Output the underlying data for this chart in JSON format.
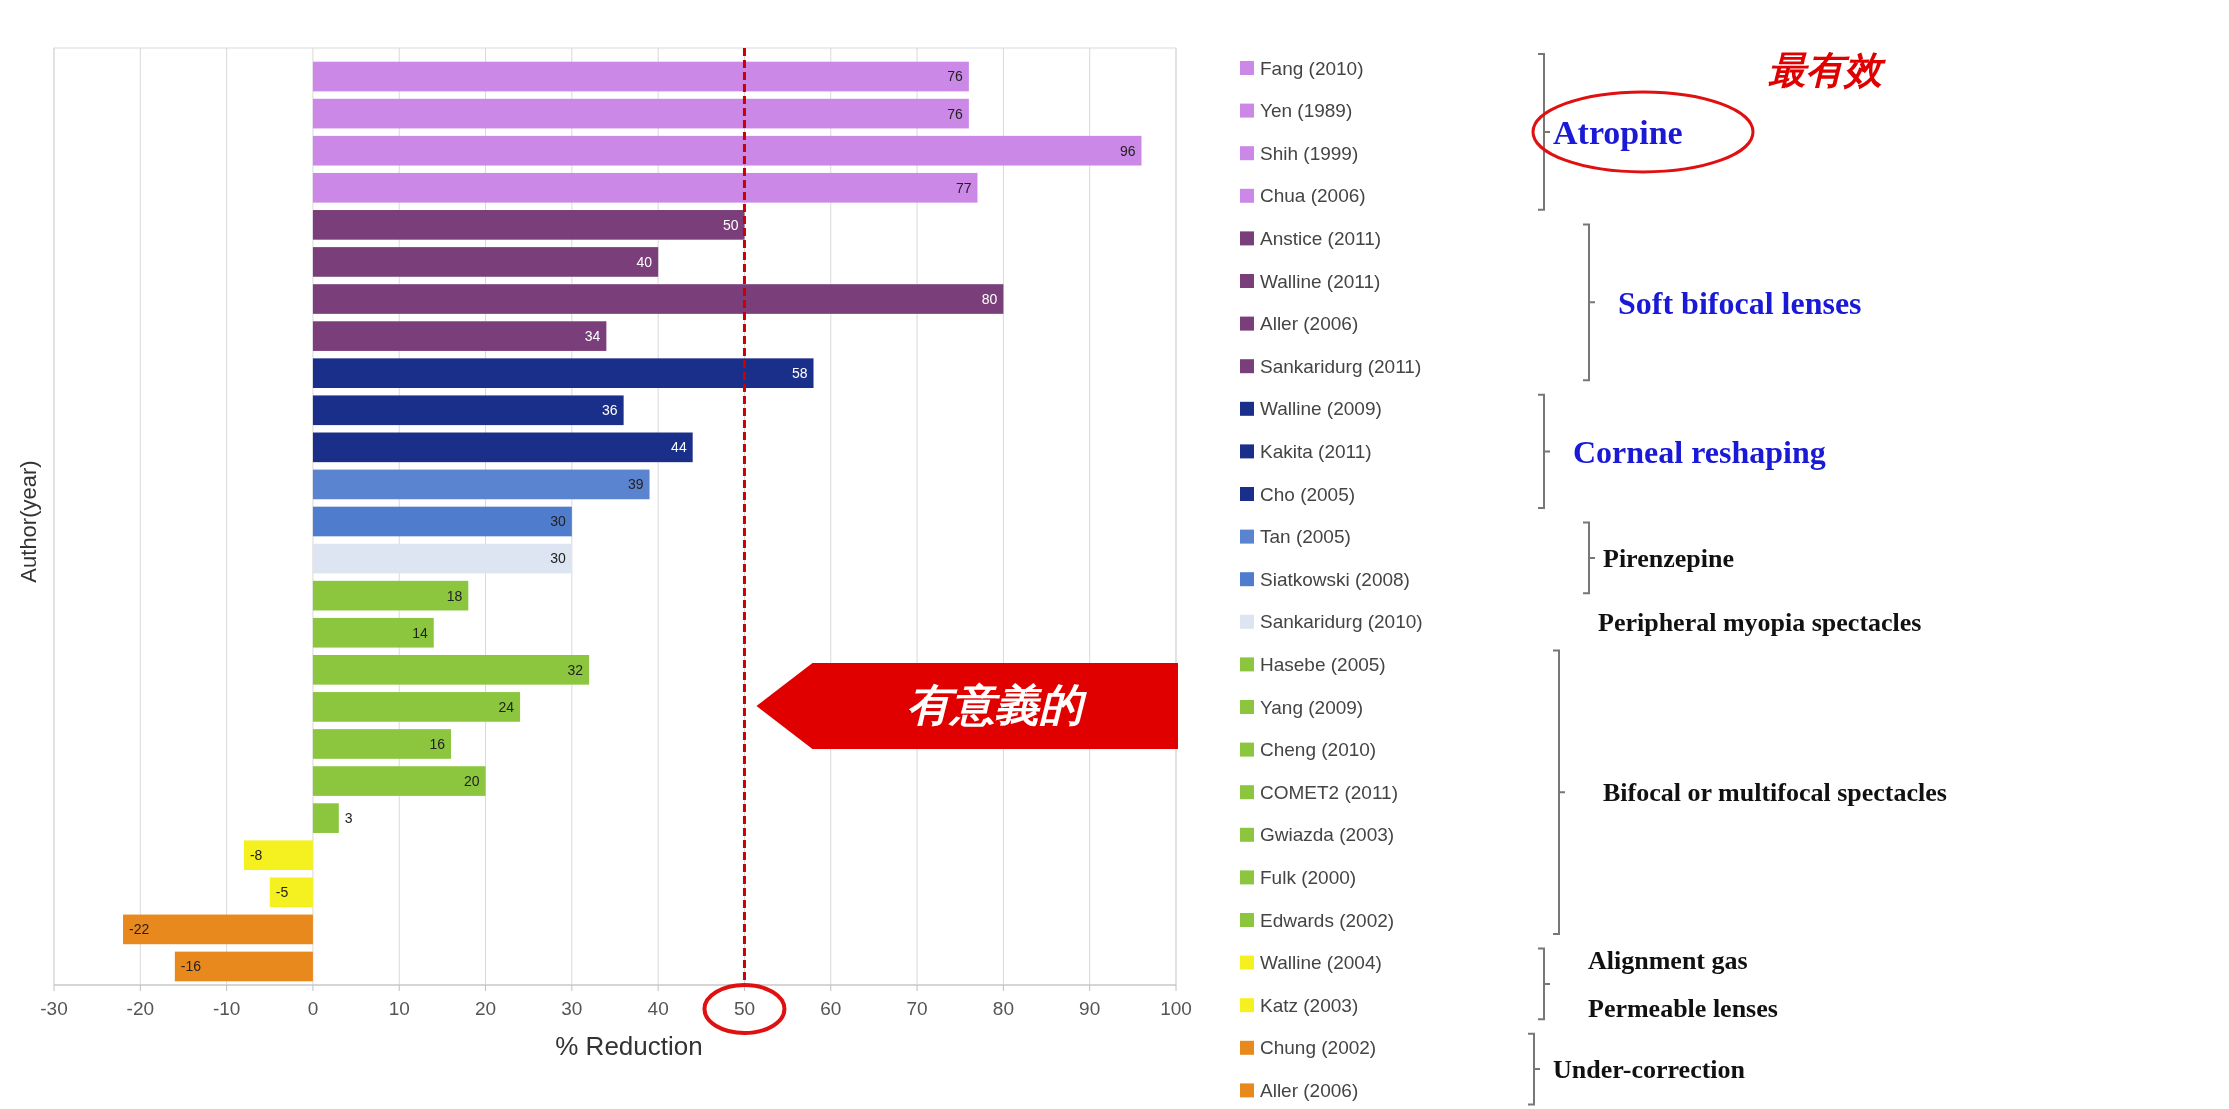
{
  "chart_data": {
    "type": "bar",
    "orientation": "horizontal",
    "xlabel": "% Reduction",
    "ylabel": "Author(year)",
    "categories": [
      null,
      null,
      null,
      null,
      null,
      null,
      null,
      null,
      null,
      null,
      null,
      null,
      null,
      null,
      null,
      null,
      null,
      null,
      null,
      null,
      null,
      null,
      null,
      null,
      null
    ],
    "xlim": [
      -30,
      100
    ],
    "xticks": [
      -30,
      -20,
      -10,
      0,
      10,
      20,
      30,
      40,
      50,
      60,
      70,
      80,
      90,
      100
    ],
    "grid": "x",
    "legend": "right",
    "data_labels": true,
    "ref_lines": [
      {
        "axis": "x",
        "value": 50,
        "color": "#cc0000",
        "line_style": "dashed"
      }
    ],
    "annotations": [
      "有意義的",
      "最有效",
      "Atropine",
      "Soft bifocal lenses",
      "Corneal reshaping",
      "Pirenzepine",
      "Peripheral myopia spectacles",
      "Bifocal or multifocal spectacles",
      "Alignment gas Permeable lenses",
      "Under-correction"
    ],
    "series": [
      {
        "name": "Fang (2010)",
        "color": "#cc88e6",
        "values": [
          76,
          null,
          null,
          null,
          null,
          null,
          null,
          null,
          null,
          null,
          null,
          null,
          null,
          null,
          null,
          null,
          null,
          null,
          null,
          null,
          null,
          null,
          null,
          null,
          null
        ]
      },
      {
        "name": "Yen (1989)",
        "color": "#cc88e6",
        "values": [
          null,
          76,
          null,
          null,
          null,
          null,
          null,
          null,
          null,
          null,
          null,
          null,
          null,
          null,
          null,
          null,
          null,
          null,
          null,
          null,
          null,
          null,
          null,
          null,
          null
        ]
      },
      {
        "name": "Shih (1999)",
        "color": "#cc88e6",
        "values": [
          null,
          null,
          96,
          null,
          null,
          null,
          null,
          null,
          null,
          null,
          null,
          null,
          null,
          null,
          null,
          null,
          null,
          null,
          null,
          null,
          null,
          null,
          null,
          null,
          null
        ]
      },
      {
        "name": "Chua (2006)",
        "color": "#cc88e6",
        "values": [
          null,
          null,
          null,
          77,
          null,
          null,
          null,
          null,
          null,
          null,
          null,
          null,
          null,
          null,
          null,
          null,
          null,
          null,
          null,
          null,
          null,
          null,
          null,
          null,
          null
        ]
      },
      {
        "name": "Anstice (2011)",
        "color": "#7a3f7a",
        "values": [
          null,
          null,
          null,
          null,
          50,
          null,
          null,
          null,
          null,
          null,
          null,
          null,
          null,
          null,
          null,
          null,
          null,
          null,
          null,
          null,
          null,
          null,
          null,
          null,
          null
        ]
      },
      {
        "name": "Walline (2011)",
        "color": "#7a3f7a",
        "values": [
          null,
          null,
          null,
          null,
          null,
          40,
          null,
          null,
          null,
          null,
          null,
          null,
          null,
          null,
          null,
          null,
          null,
          null,
          null,
          null,
          null,
          null,
          null,
          null,
          null
        ]
      },
      {
        "name": "Aller (2006)",
        "color": "#7a3f7a",
        "values": [
          null,
          null,
          null,
          null,
          null,
          null,
          80,
          null,
          null,
          null,
          null,
          null,
          null,
          null,
          null,
          null,
          null,
          null,
          null,
          null,
          null,
          null,
          null,
          null,
          null
        ]
      },
      {
        "name": "Sankaridurg (2011)",
        "color": "#7a3f7a",
        "values": [
          null,
          null,
          null,
          null,
          null,
          null,
          null,
          34,
          null,
          null,
          null,
          null,
          null,
          null,
          null,
          null,
          null,
          null,
          null,
          null,
          null,
          null,
          null,
          null,
          null
        ]
      },
      {
        "name": "Walline (2009)",
        "color": "#1a2f8a",
        "values": [
          null,
          null,
          null,
          null,
          null,
          null,
          null,
          null,
          58,
          null,
          null,
          null,
          null,
          null,
          null,
          null,
          null,
          null,
          null,
          null,
          null,
          null,
          null,
          null,
          null
        ]
      },
      {
        "name": "Kakita (2011)",
        "color": "#1a2f8a",
        "values": [
          null,
          null,
          null,
          null,
          null,
          null,
          null,
          null,
          null,
          36,
          null,
          null,
          null,
          null,
          null,
          null,
          null,
          null,
          null,
          null,
          null,
          null,
          null,
          null,
          null
        ]
      },
      {
        "name": "Cho (2005)",
        "color": "#1a2f8a",
        "values": [
          null,
          null,
          null,
          null,
          null,
          null,
          null,
          null,
          null,
          null,
          44,
          null,
          null,
          null,
          null,
          null,
          null,
          null,
          null,
          null,
          null,
          null,
          null,
          null,
          null
        ]
      },
      {
        "name": "Tan (2005)",
        "color": "#5b84d0",
        "values": [
          null,
          null,
          null,
          null,
          null,
          null,
          null,
          null,
          null,
          null,
          null,
          39,
          null,
          null,
          null,
          null,
          null,
          null,
          null,
          null,
          null,
          null,
          null,
          null,
          null
        ]
      },
      {
        "name": "Siatkowski (2008)",
        "color": "#4f7ccc",
        "values": [
          null,
          null,
          null,
          null,
          null,
          null,
          null,
          null,
          null,
          null,
          null,
          null,
          30,
          null,
          null,
          null,
          null,
          null,
          null,
          null,
          null,
          null,
          null,
          null,
          null
        ]
      },
      {
        "name": "Sankaridurg (2010)",
        "color": "#dde4f2",
        "values": [
          null,
          null,
          null,
          null,
          null,
          null,
          null,
          null,
          null,
          null,
          null,
          null,
          null,
          30,
          null,
          null,
          null,
          null,
          null,
          null,
          null,
          null,
          null,
          null,
          null
        ]
      },
      {
        "name": "Hasebe (2005)",
        "color": "#8cc63f",
        "values": [
          null,
          null,
          null,
          null,
          null,
          null,
          null,
          null,
          null,
          null,
          null,
          null,
          null,
          null,
          18,
          null,
          null,
          null,
          null,
          null,
          null,
          null,
          null,
          null,
          null
        ]
      },
      {
        "name": "Yang (2009)",
        "color": "#8cc63f",
        "values": [
          null,
          null,
          null,
          null,
          null,
          null,
          null,
          null,
          null,
          null,
          null,
          null,
          null,
          null,
          null,
          14,
          null,
          null,
          null,
          null,
          null,
          null,
          null,
          null,
          null
        ]
      },
      {
        "name": "Cheng (2010)",
        "color": "#8cc63f",
        "values": [
          null,
          null,
          null,
          null,
          null,
          null,
          null,
          null,
          null,
          null,
          null,
          null,
          null,
          null,
          null,
          null,
          32,
          null,
          null,
          null,
          null,
          null,
          null,
          null,
          null
        ]
      },
      {
        "name": "COMET2 (2011)",
        "color": "#8cc63f",
        "values": [
          null,
          null,
          null,
          null,
          null,
          null,
          null,
          null,
          null,
          null,
          null,
          null,
          null,
          null,
          null,
          null,
          null,
          24,
          null,
          null,
          null,
          null,
          null,
          null,
          null
        ]
      },
      {
        "name": "Gwiazda (2003)",
        "color": "#8cc63f",
        "values": [
          null,
          null,
          null,
          null,
          null,
          null,
          null,
          null,
          null,
          null,
          null,
          null,
          null,
          null,
          null,
          null,
          null,
          null,
          16,
          null,
          null,
          null,
          null,
          null,
          null
        ]
      },
      {
        "name": "Fulk (2000)",
        "color": "#8cc63f",
        "values": [
          null,
          null,
          null,
          null,
          null,
          null,
          null,
          null,
          null,
          null,
          null,
          null,
          null,
          null,
          null,
          null,
          null,
          null,
          null,
          20,
          null,
          null,
          null,
          null,
          null
        ]
      },
      {
        "name": "Edwards (2002)",
        "color": "#8cc63f",
        "values": [
          null,
          null,
          null,
          null,
          null,
          null,
          null,
          null,
          null,
          null,
          null,
          null,
          null,
          null,
          null,
          null,
          null,
          null,
          null,
          null,
          3,
          null,
          null,
          null,
          null
        ]
      },
      {
        "name": "Walline (2004)",
        "color": "#f5f020",
        "values": [
          null,
          null,
          null,
          null,
          null,
          null,
          null,
          null,
          null,
          null,
          null,
          null,
          null,
          null,
          null,
          null,
          null,
          null,
          null,
          null,
          null,
          -8,
          null,
          null,
          null
        ]
      },
      {
        "name": "Katz (2003)",
        "color": "#f5f020",
        "values": [
          null,
          null,
          null,
          null,
          null,
          null,
          null,
          null,
          null,
          null,
          null,
          null,
          null,
          null,
          null,
          null,
          null,
          null,
          null,
          null,
          null,
          null,
          -5,
          null,
          null
        ]
      },
      {
        "name": "Chung (2002)",
        "color": "#e8891e",
        "values": [
          null,
          null,
          null,
          null,
          null,
          null,
          null,
          null,
          null,
          null,
          null,
          null,
          null,
          null,
          null,
          null,
          null,
          null,
          null,
          null,
          null,
          null,
          null,
          -22,
          null
        ]
      },
      {
        "name": "Aller (2006)",
        "color": "#e8891e",
        "values": [
          null,
          null,
          null,
          null,
          null,
          null,
          null,
          null,
          null,
          null,
          null,
          null,
          null,
          null,
          null,
          null,
          null,
          null,
          null,
          null,
          null,
          null,
          null,
          null,
          -16
        ]
      }
    ]
  }
}
